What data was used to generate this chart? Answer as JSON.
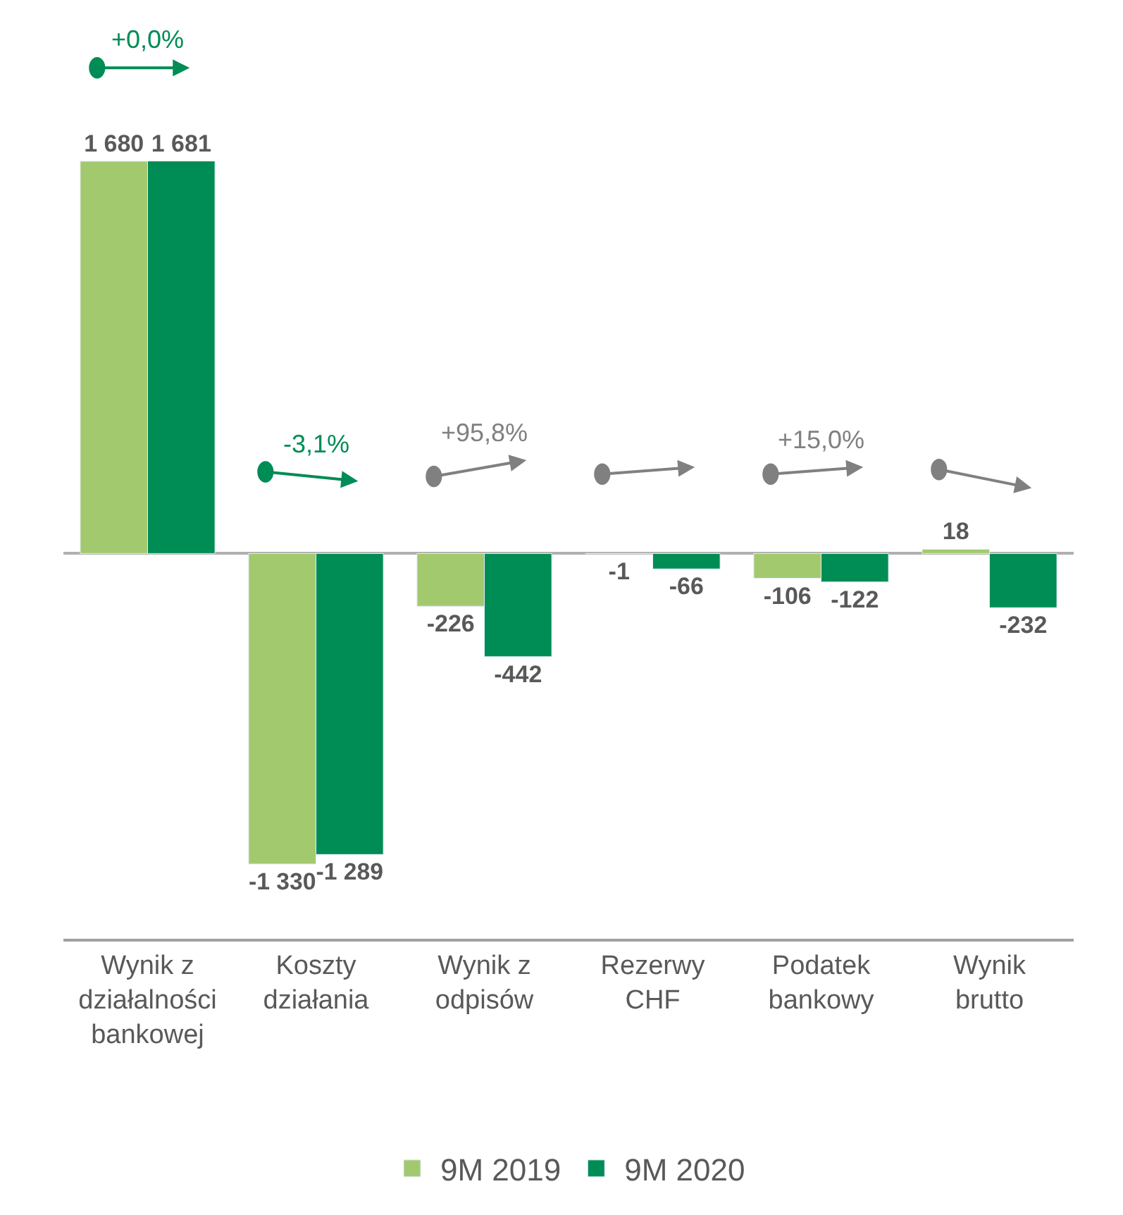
{
  "chart_data": {
    "type": "bar",
    "categories": [
      "Wynik z\ndziałalności\nbankowej",
      "Koszty\ndziałania",
      "Wynik z\nodpisów",
      "Rezerwy\nCHF",
      "Podatek\nbankowy",
      "Wynik\nbrutto"
    ],
    "series": [
      {
        "name": "9M 2019",
        "color": "#a3c96f",
        "values": [
          1680,
          -1330,
          -226,
          -1,
          -106,
          18
        ],
        "value_labels": [
          "1 680",
          "-1 330",
          "-226",
          "-1",
          "-106",
          "18"
        ]
      },
      {
        "name": "9M 2020",
        "color": "#008c55",
        "values": [
          1681,
          -1289,
          -442,
          -66,
          -122,
          -232
        ],
        "value_labels": [
          "1 681",
          "-1 289",
          "-442",
          "-66",
          "-122",
          "-232"
        ]
      }
    ],
    "annotations": [
      "+0,0%",
      "-3,1%",
      "+95,8%",
      "+15,0%"
    ],
    "legend": "bottom"
  }
}
